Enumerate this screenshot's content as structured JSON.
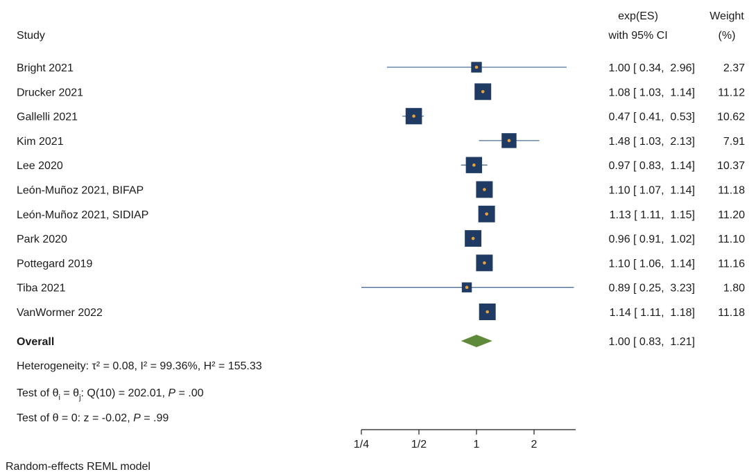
{
  "header": {
    "study": "Study",
    "es_line1": "exp(ES)",
    "es_line2": "with 95% CI",
    "weight_line1": "Weight",
    "weight_line2": "(%)"
  },
  "colors": {
    "marker": "#1f3b63",
    "point": "#e9a13a",
    "line": "#4a6f96",
    "diamond": "#5e8a3a"
  },
  "chart_data": {
    "type": "forest",
    "x_scale": "log",
    "xlim": [
      0.25,
      3.3
    ],
    "x_ticks": [
      {
        "value": 0.25,
        "label": "1/4"
      },
      {
        "value": 0.5,
        "label": "1/2"
      },
      {
        "value": 1,
        "label": "1"
      },
      {
        "value": 2,
        "label": "2"
      }
    ],
    "studies": [
      {
        "name": "Bright 2021",
        "es": 1.0,
        "lo": 0.34,
        "hi": 2.96,
        "weight": 2.37,
        "ci_text": "1.00 [ 0.34,  2.96]",
        "weight_text": "2.37"
      },
      {
        "name": "Drucker 2021",
        "es": 1.08,
        "lo": 1.03,
        "hi": 1.14,
        "weight": 11.12,
        "ci_text": "1.08 [ 1.03,  1.14]",
        "weight_text": "11.12"
      },
      {
        "name": "Gallelli 2021",
        "es": 0.47,
        "lo": 0.41,
        "hi": 0.53,
        "weight": 10.62,
        "ci_text": "0.47 [ 0.41,  0.53]",
        "weight_text": "10.62"
      },
      {
        "name": "Kim 2021",
        "es": 1.48,
        "lo": 1.03,
        "hi": 2.13,
        "weight": 7.91,
        "ci_text": "1.48 [ 1.03,  2.13]",
        "weight_text": "7.91"
      },
      {
        "name": "Lee 2020",
        "es": 0.97,
        "lo": 0.83,
        "hi": 1.14,
        "weight": 10.37,
        "ci_text": "0.97 [ 0.83,  1.14]",
        "weight_text": "10.37"
      },
      {
        "name": "León-Muñoz 2021, BIFAP",
        "es": 1.1,
        "lo": 1.07,
        "hi": 1.14,
        "weight": 11.18,
        "ci_text": "1.10 [ 1.07,  1.14]",
        "weight_text": "11.18"
      },
      {
        "name": "León-Muñoz 2021, SIDIAP",
        "es": 1.13,
        "lo": 1.11,
        "hi": 1.15,
        "weight": 11.2,
        "ci_text": "1.13 [ 1.11,  1.15]",
        "weight_text": "11.20"
      },
      {
        "name": "Park 2020",
        "es": 0.96,
        "lo": 0.91,
        "hi": 1.02,
        "weight": 11.1,
        "ci_text": "0.96 [ 0.91,  1.02]",
        "weight_text": "11.10"
      },
      {
        "name": "Pottegard 2019",
        "es": 1.1,
        "lo": 1.06,
        "hi": 1.14,
        "weight": 11.16,
        "ci_text": "1.10 [ 1.06,  1.14]",
        "weight_text": "11.16"
      },
      {
        "name": "Tiba 2021",
        "es": 0.89,
        "lo": 0.25,
        "hi": 3.23,
        "weight": 1.8,
        "ci_text": "0.89 [ 0.25,  3.23]",
        "weight_text": "1.80"
      },
      {
        "name": "VanWormer 2022",
        "es": 1.14,
        "lo": 1.11,
        "hi": 1.18,
        "weight": 11.18,
        "ci_text": "1.14 [ 1.11,  1.18]",
        "weight_text": "11.18"
      }
    ],
    "overall": {
      "name": "Overall",
      "es": 1.0,
      "lo": 0.83,
      "hi": 1.21,
      "ci_text": "1.00 [ 0.83,  1.21]"
    },
    "heterogeneity": "Heterogeneity: τ² = 0.08, I² = 99.36%, H² = 155.33",
    "test_homogeneity": {
      "prefix": "Test of θ",
      "sub1": "i",
      "mid": " = θ",
      "sub2": "j",
      "rest": ": Q(10) = 202.01, ",
      "p_label": "P",
      "p_value": " = .00"
    },
    "test_effect": {
      "prefix": "Test of θ = 0: z = -0.02, ",
      "p_label": "P",
      "p_value": " = .99"
    }
  },
  "footer": {
    "model": "Random-effects REML model"
  }
}
